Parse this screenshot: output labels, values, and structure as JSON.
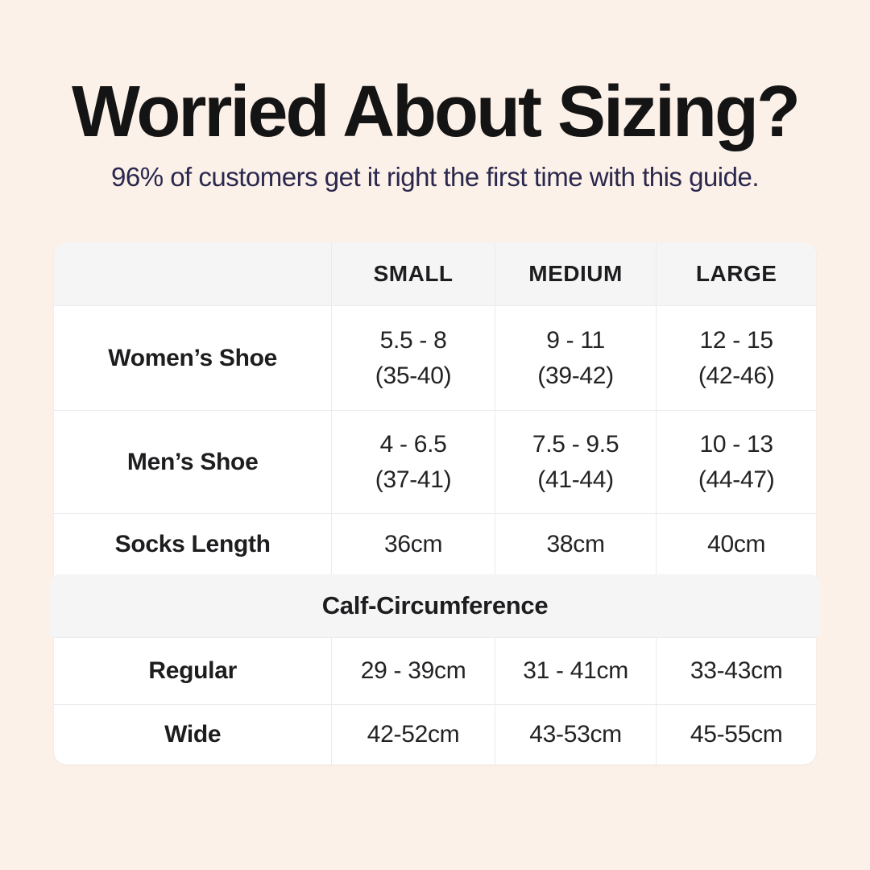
{
  "page": {
    "background_color": "#fcf1e8",
    "card_color": "#ffffff",
    "band_color": "#f5f5f6",
    "divider_color": "#ebebee",
    "title_color": "#141414",
    "subtitle_color": "#2a284e"
  },
  "header": {
    "title": "Worried About Sizing?",
    "subtitle": "96% of customers get it right the first time with this guide."
  },
  "size_table": {
    "columns": [
      "SMALL",
      "MEDIUM",
      "LARGE"
    ],
    "rows": [
      {
        "label": "Women’s Shoe",
        "cells": [
          {
            "line1": "5.5 - 8",
            "line2": "(35-40)"
          },
          {
            "line1": "9 - 11",
            "line2": "(39-42)"
          },
          {
            "line1": "12 - 15",
            "line2": "(42-46)"
          }
        ]
      },
      {
        "label": "Men’s Shoe",
        "cells": [
          {
            "line1": "4 - 6.5",
            "line2": "(37-41)"
          },
          {
            "line1": "7.5 - 9.5",
            "line2": "(41-44)"
          },
          {
            "line1": "10 - 13",
            "line2": "(44-47)"
          }
        ]
      },
      {
        "label": "Socks Length",
        "cells": [
          {
            "line1": "36cm"
          },
          {
            "line1": "38cm"
          },
          {
            "line1": "40cm"
          }
        ]
      }
    ],
    "calf_section": {
      "title": "Calf-Circumference",
      "rows": [
        {
          "label": "Regular",
          "cells": [
            {
              "line1": "29 - 39cm"
            },
            {
              "line1": "31 - 41cm"
            },
            {
              "line1": "33-43cm"
            }
          ]
        },
        {
          "label": "Wide",
          "cells": [
            {
              "line1": "42-52cm"
            },
            {
              "line1": "43-53cm"
            },
            {
              "line1": "45-55cm"
            }
          ]
        }
      ]
    }
  },
  "chart_data": {
    "type": "table",
    "title": "Worried About Sizing?",
    "subtitle": "96% of customers get it right the first time with this guide.",
    "columns": [
      "",
      "SMALL",
      "MEDIUM",
      "LARGE"
    ],
    "rows": [
      [
        "Women’s Shoe",
        "5.5 - 8 (35-40)",
        "9 - 11 (39-42)",
        "12 - 15 (42-46)"
      ],
      [
        "Men’s Shoe",
        "4 - 6.5 (37-41)",
        "7.5 - 9.5 (41-44)",
        "10 - 13 (44-47)"
      ],
      [
        "Socks Length",
        "36cm",
        "38cm",
        "40cm"
      ],
      [
        "Calf-Circumference (section header)",
        "",
        "",
        ""
      ],
      [
        "Regular",
        "29 - 39cm",
        "31 - 41cm",
        "33-43cm"
      ],
      [
        "Wide",
        "42-52cm",
        "43-53cm",
        "45-55cm"
      ]
    ],
    "layout": {
      "grid": true,
      "header_background": "#f5f5f6",
      "section_band_background": "#f5f5f6"
    }
  }
}
